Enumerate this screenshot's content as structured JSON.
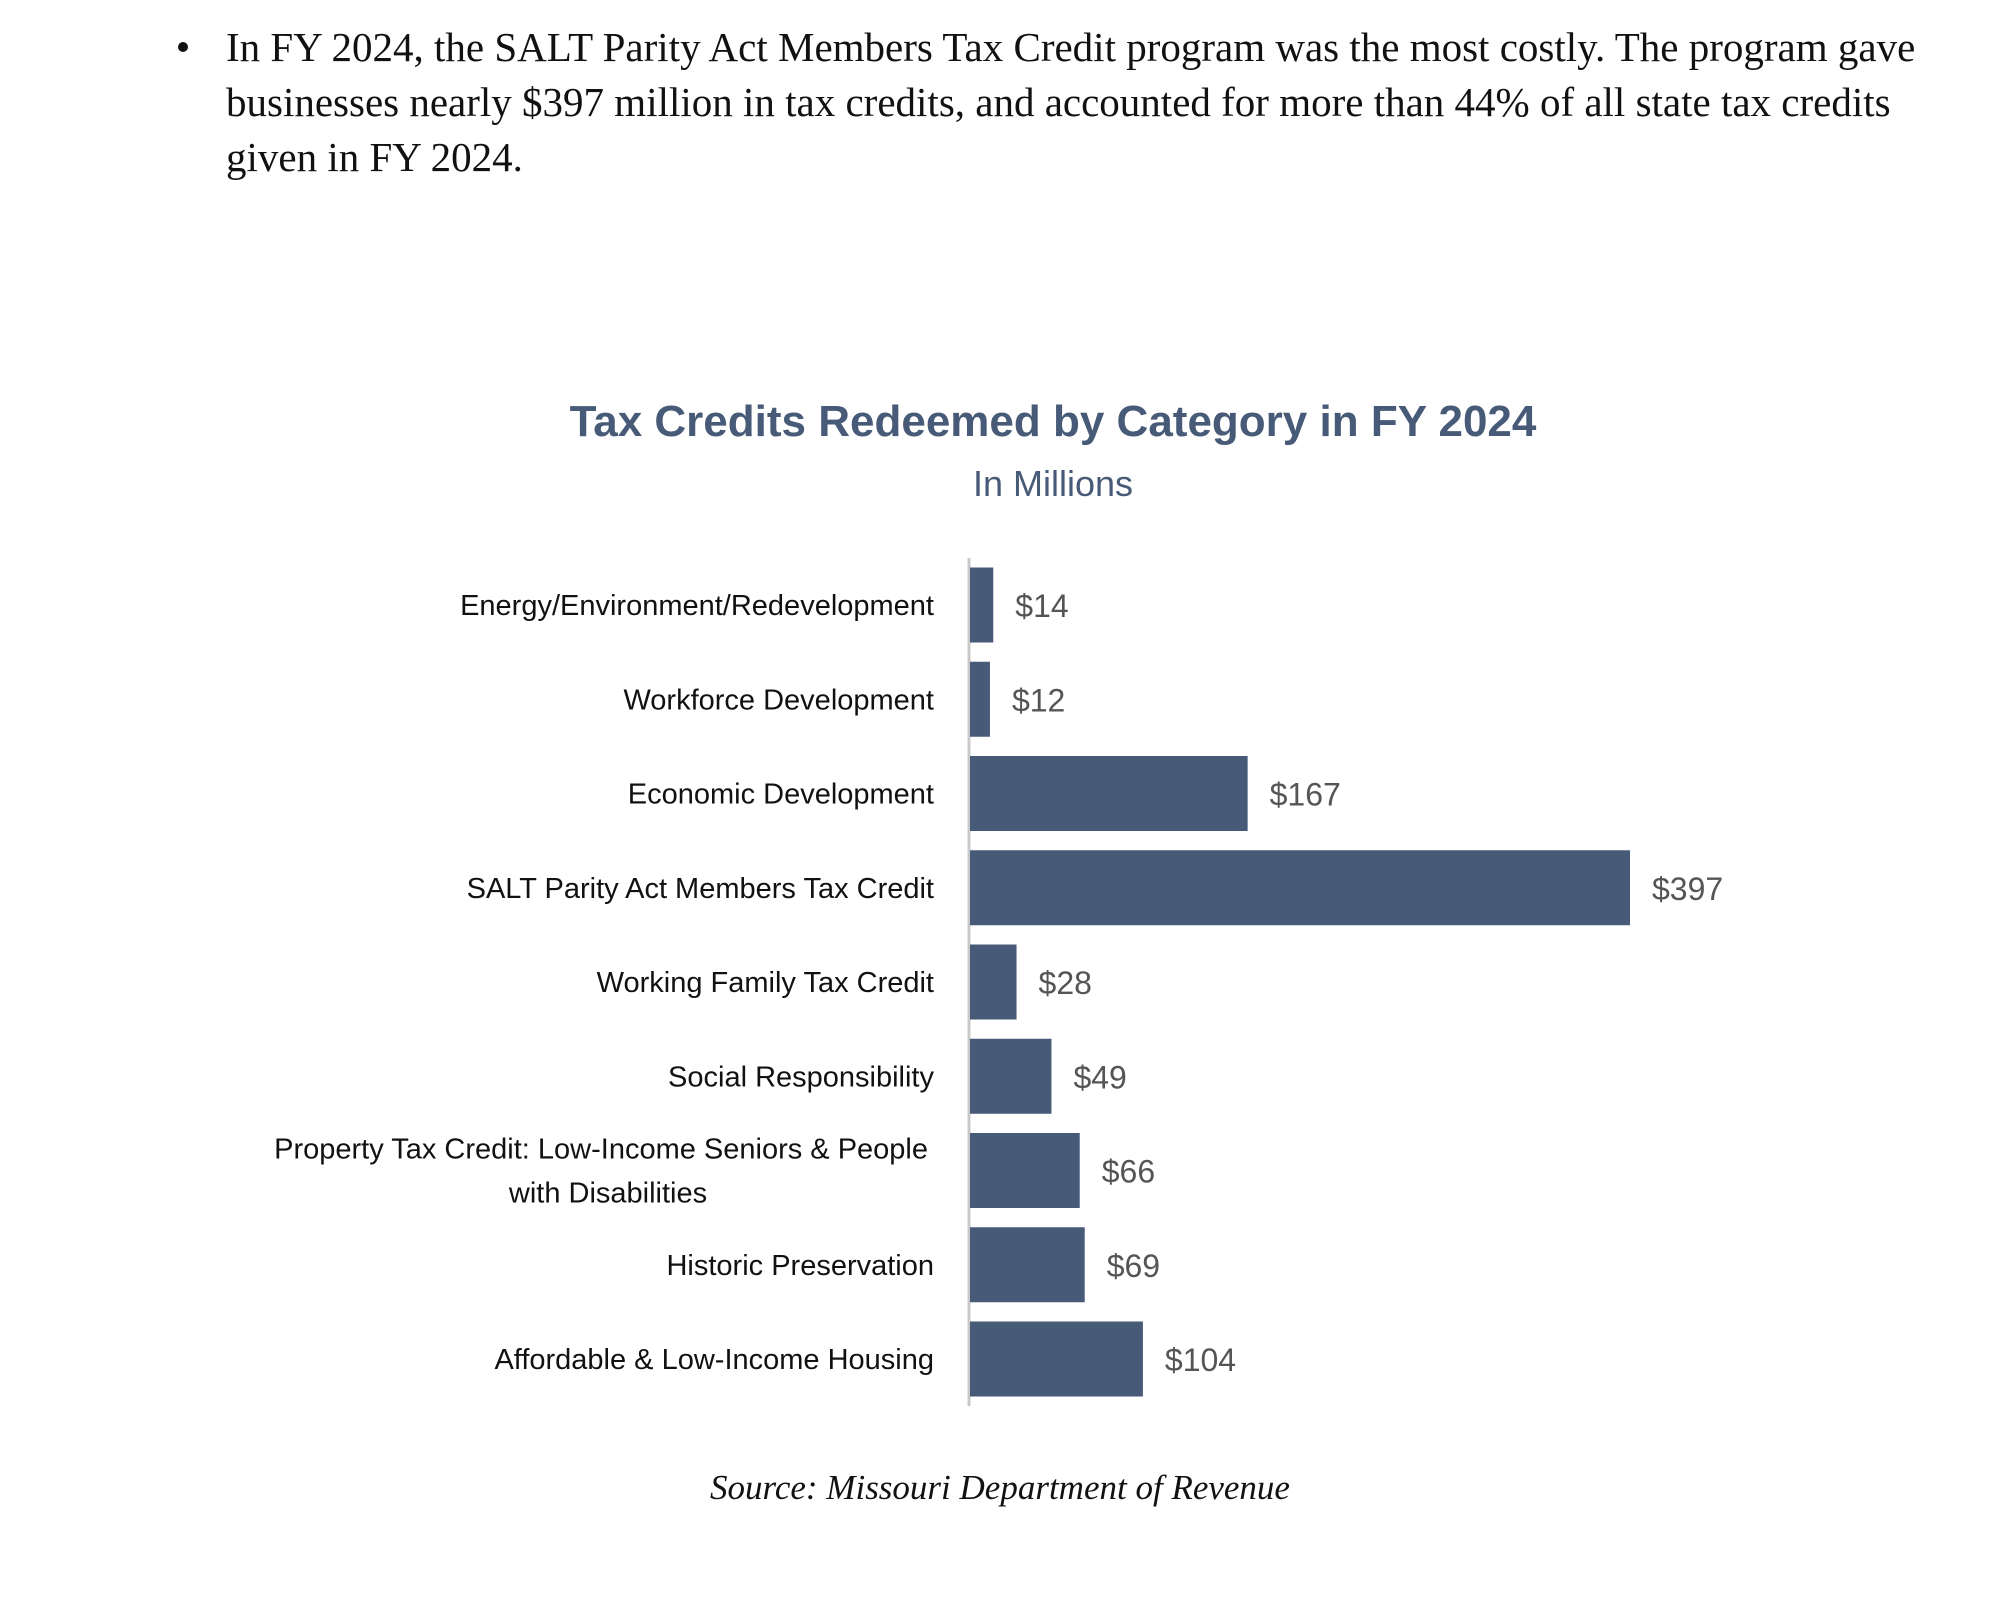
{
  "bullet": {
    "text": "In FY 2024, the SALT Parity Act Members Tax Credit program was the most costly. The program gave businesses nearly $397 million in tax credits, and accounted for more than 44% of all state tax credits given in FY 2024."
  },
  "chart_data": {
    "type": "bar",
    "orientation": "horizontal",
    "title": "Tax Credits Redeemed by Category in FY 2024",
    "subtitle": "In Millions",
    "categories": [
      "Energy/Environment/Redevelopment",
      "Workforce Development",
      "Economic Development",
      "SALT Parity Act Members Tax Credit",
      "Working Family Tax Credit",
      "Social Responsibility",
      "Property Tax Credit: Low-Income Seniors & People with Disabilities",
      "Historic Preservation",
      "Affordable & Low-Income Housing"
    ],
    "values": [
      14,
      12,
      167,
      397,
      28,
      49,
      66,
      69,
      104
    ],
    "data_labels": [
      "$14",
      "$12",
      "$167",
      "$397",
      "$28",
      "$49",
      "$66",
      "$69",
      "$104"
    ],
    "xlim": [
      0,
      397
    ],
    "grid": false,
    "legend": "none",
    "bar_color": "#475a78",
    "title_color": "#475a78"
  },
  "source": {
    "text": "Source: Missouri Department of Revenue"
  }
}
